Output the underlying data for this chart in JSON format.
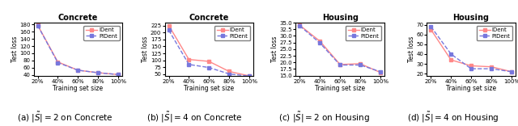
{
  "panels": [
    {
      "title": "Concrete",
      "xlabel": "Training set size",
      "ylabel": "Test loss",
      "caption": "(a) $|\\tilde{S}| = 2$ on Concrete",
      "xticks": [
        "20%",
        "40%",
        "60%",
        "80%",
        "100%"
      ],
      "x": [
        0.2,
        0.4,
        0.6,
        0.8,
        1.0
      ],
      "IDent": [
        178,
        76,
        53,
        46,
        41
      ],
      "PIDent": [
        177,
        74,
        53,
        46,
        41
      ],
      "ylim": [
        38,
        185
      ],
      "yticks": [
        40,
        60,
        80,
        100,
        120,
        140,
        160,
        180
      ]
    },
    {
      "title": "Concrete",
      "xlabel": "Training set size",
      "ylabel": "Test loss",
      "caption": "(b) $|\\tilde{S}| = 4$ on Concrete",
      "xticks": [
        "20%",
        "40%",
        "60%",
        "80%",
        "100%"
      ],
      "x": [
        0.2,
        0.4,
        0.6,
        0.8,
        1.0
      ],
      "IDent": [
        225,
        103,
        96,
        60,
        44
      ],
      "PIDent": [
        208,
        85,
        74,
        51,
        43
      ],
      "ylim": [
        45,
        235
      ],
      "yticks": [
        50,
        75,
        100,
        125,
        150,
        175,
        200,
        225
      ]
    },
    {
      "title": "Housing",
      "xlabel": "Training set size",
      "ylabel": "Test loss",
      "caption": "(c) $|\\tilde{S}| = 2$ on Housing",
      "xticks": [
        "20%",
        "40%",
        "60%",
        "80%",
        "100%"
      ],
      "x": [
        0.2,
        0.4,
        0.6,
        0.8,
        1.0
      ],
      "IDent": [
        34.0,
        28.0,
        19.2,
        19.5,
        16.2
      ],
      "PIDent": [
        33.8,
        27.3,
        19.0,
        19.0,
        16.5
      ],
      "ylim": [
        15.0,
        35.0
      ],
      "yticks": [
        15.0,
        17.5,
        20.0,
        22.5,
        25.0,
        27.5,
        30.0,
        32.5,
        35.0
      ]
    },
    {
      "title": "Housing",
      "xlabel": "Training set size",
      "ylabel": "Test loss",
      "caption": "(d) $|\\tilde{S}| = 4$ on Housing",
      "xticks": [
        "20%",
        "40%",
        "60%",
        "80%",
        "100%"
      ],
      "x": [
        0.2,
        0.4,
        0.6,
        0.8,
        1.0
      ],
      "IDent": [
        65,
        34,
        28,
        27,
        22
      ],
      "PIDent": [
        68,
        40,
        25,
        25,
        22
      ],
      "ylim": [
        18,
        72
      ],
      "yticks": [
        20,
        30,
        40,
        50,
        60,
        70
      ]
    }
  ],
  "IDent_color": "#FF8888",
  "PIDent_color": "#7777DD",
  "IDent_marker": "s",
  "PIDent_marker": "s",
  "markersize": 2.5,
  "linewidth": 1.0,
  "IDent_linestyle": "-",
  "PIDent_linestyle": "--",
  "caption_fontsize": 7.5
}
